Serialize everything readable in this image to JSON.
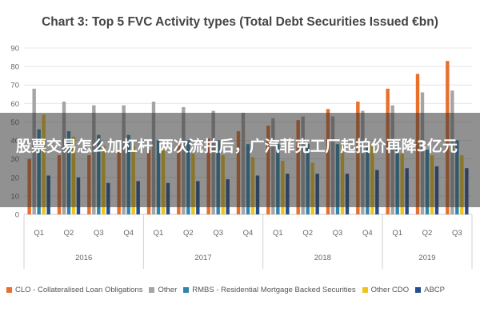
{
  "headline": "股票交易怎么加杠杆 两次流拍后，广汽菲克工厂起拍价再降3亿元",
  "chart_data": {
    "type": "bar",
    "title": "Chart 3: Top 5 FVC Activity types (Total Debt Securities Issued €bn)",
    "xlabel": "",
    "ylabel": "",
    "ylim": [
      0,
      90
    ],
    "yticks": [
      0,
      10,
      20,
      30,
      40,
      50,
      60,
      70,
      80,
      90
    ],
    "grid": true,
    "legend_position": "bottom",
    "categories": [
      "Q1",
      "Q2",
      "Q3",
      "Q4",
      "Q1",
      "Q2",
      "Q3",
      "Q4",
      "Q1",
      "Q2",
      "Q3",
      "Q4",
      "Q1",
      "Q2",
      "Q3"
    ],
    "groups": [
      {
        "label": "2016",
        "count": 4
      },
      {
        "label": "2017",
        "count": 4
      },
      {
        "label": "2018",
        "count": 4
      },
      {
        "label": "2019",
        "count": 3
      }
    ],
    "series": [
      {
        "name": "CLO - Collateralised Loan Obligations",
        "color": "#e8702a",
        "values": [
          30,
          32,
          32,
          34,
          35,
          38,
          41,
          45,
          48,
          51,
          57,
          61,
          68,
          76,
          83
        ]
      },
      {
        "name": "Other",
        "color": "#a5a5a5",
        "values": [
          68,
          61,
          59,
          59,
          61,
          58,
          56,
          55,
          52,
          53,
          53,
          56,
          59,
          66,
          67
        ]
      },
      {
        "name": "RMBS - Residential Mortgage Backed Securities",
        "color": "#2e86b0",
        "values": [
          46,
          45,
          43,
          43,
          40,
          40,
          40,
          38,
          38,
          38,
          38,
          37,
          37,
          35,
          40
        ]
      },
      {
        "name": "Other CDO",
        "color": "#f0c419",
        "values": [
          54,
          42,
          37,
          37,
          35,
          33,
          32,
          31,
          29,
          28,
          38,
          38,
          33,
          32,
          32
        ]
      },
      {
        "name": "ABCP",
        "color": "#254e8c",
        "values": [
          21,
          20,
          17,
          18,
          17,
          18,
          19,
          21,
          22,
          22,
          22,
          24,
          25,
          26,
          25
        ]
      }
    ]
  }
}
